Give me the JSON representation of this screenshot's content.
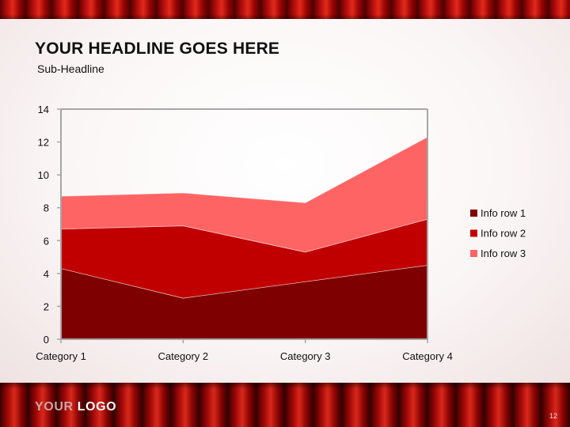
{
  "slide": {
    "headline": "YOUR HEADLINE GOES HERE",
    "subheadline": "Sub-Headline",
    "logo_part1": "YOUR",
    "logo_part2": "LOGO",
    "page_number": "12"
  },
  "colors": {
    "info_row_1": "#7f0000",
    "info_row_2": "#c00000",
    "info_row_3": "#ff6464",
    "axis": "#a6a6a6"
  },
  "chart_data": {
    "type": "area",
    "stacked": true,
    "categories": [
      "Category 1",
      "Category 2",
      "Category 3",
      "Category 4"
    ],
    "series": [
      {
        "name": "Info row 1",
        "values": [
          4.3,
          2.5,
          3.5,
          4.5
        ]
      },
      {
        "name": "Info row 2",
        "values": [
          2.4,
          4.4,
          1.8,
          2.8
        ]
      },
      {
        "name": "Info row 3",
        "values": [
          2.0,
          2.0,
          3.0,
          5.0
        ]
      }
    ],
    "ylim": [
      0,
      14
    ],
    "yticks": [
      0,
      2,
      4,
      6,
      8,
      10,
      12,
      14
    ],
    "xlabel": "",
    "ylabel": "",
    "legend_position": "right",
    "grid": false
  }
}
